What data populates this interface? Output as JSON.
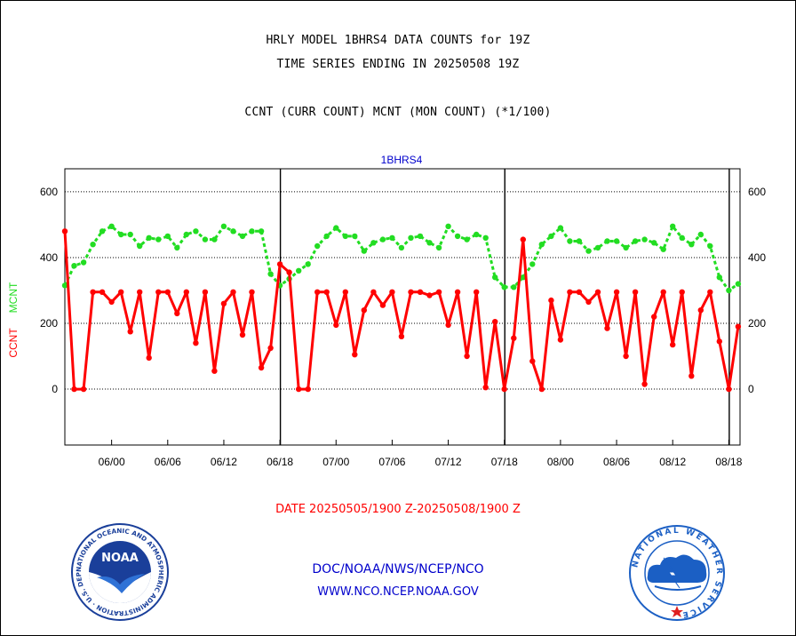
{
  "header": {
    "line1": "HRLY MODEL 1BHRS4 DATA COUNTS for 19Z",
    "line2": "TIME SERIES ENDING IN 20250508 19Z",
    "line3": "CCNT (CURR COUNT) MCNT (MON COUNT) (*1/100)"
  },
  "chart_data": {
    "type": "line",
    "title": "1BHRS4",
    "ylabel_ccnt": "CCNT",
    "ylabel_mcnt": "MCNT",
    "ylim": [
      -170,
      670
    ],
    "yticks": [
      0,
      200,
      400,
      600
    ],
    "grid": true,
    "x_tick_labels": [
      "06/00",
      "06/06",
      "06/12",
      "06/18",
      "07/00",
      "07/06",
      "07/12",
      "07/18",
      "08/00",
      "08/06",
      "08/12",
      "08/18"
    ],
    "x_tick_hours": [
      5,
      11,
      17,
      23,
      29,
      35,
      41,
      47,
      53,
      59,
      65,
      71
    ],
    "day_boundary_hours": [
      23,
      47,
      71
    ],
    "xlim": [
      0,
      72.2
    ],
    "series": [
      {
        "name": "CCNT",
        "color": "#ff0000",
        "values": [
          480,
          0,
          0,
          295,
          295,
          265,
          295,
          175,
          295,
          95,
          295,
          295,
          230,
          295,
          140,
          295,
          55,
          260,
          295,
          165,
          295,
          65,
          125,
          380,
          355,
          0,
          0,
          295,
          295,
          195,
          295,
          105,
          240,
          295,
          255,
          295,
          160,
          295,
          295,
          285,
          295,
          195,
          295,
          100,
          295,
          5,
          205,
          0,
          155,
          455,
          85,
          0,
          270,
          150,
          295,
          295,
          265,
          295,
          185,
          295,
          100,
          295,
          15,
          220,
          295,
          135,
          295,
          40,
          240,
          295,
          145,
          0,
          190
        ]
      },
      {
        "name": "MCNT",
        "color": "#22dd22",
        "values": [
          315,
          375,
          385,
          440,
          480,
          495,
          470,
          470,
          435,
          460,
          455,
          465,
          430,
          470,
          480,
          455,
          455,
          495,
          480,
          465,
          480,
          480,
          350,
          315,
          335,
          360,
          380,
          435,
          465,
          490,
          465,
          465,
          420,
          445,
          455,
          460,
          430,
          460,
          465,
          445,
          430,
          495,
          465,
          455,
          470,
          460,
          340,
          310,
          310,
          340,
          380,
          440,
          465,
          490,
          450,
          450,
          420,
          430,
          450,
          450,
          430,
          450,
          455,
          445,
          425,
          495,
          460,
          440,
          470,
          435,
          340,
          300,
          320
        ]
      }
    ]
  },
  "footer": {
    "date_range": "DATE 20250505/1900 Z-20250508/1900 Z",
    "org": "DOC/NOAA/NWS/NCEP/NCO",
    "url": "WWW.NCO.NCEP.NOAA.GOV"
  },
  "logos": {
    "noaa_badge": "NOAA",
    "noaa_ring": "NATIONAL OCEANIC AND ATMOSPHERIC ADMINISTRATION · U.S. DEPARTMENT OF COMMERCE ·",
    "nws_ring": "NATIONAL WEATHER SERVICE"
  },
  "colors": {
    "ccnt": "#ff0000",
    "mcnt": "#22dd22",
    "chart_title": "#0000cc",
    "footer_links": "#0000cc",
    "date_text": "#ff0000",
    "noaa_blue": "#1a3f9a",
    "nws_blue": "#1b5fc4"
  }
}
